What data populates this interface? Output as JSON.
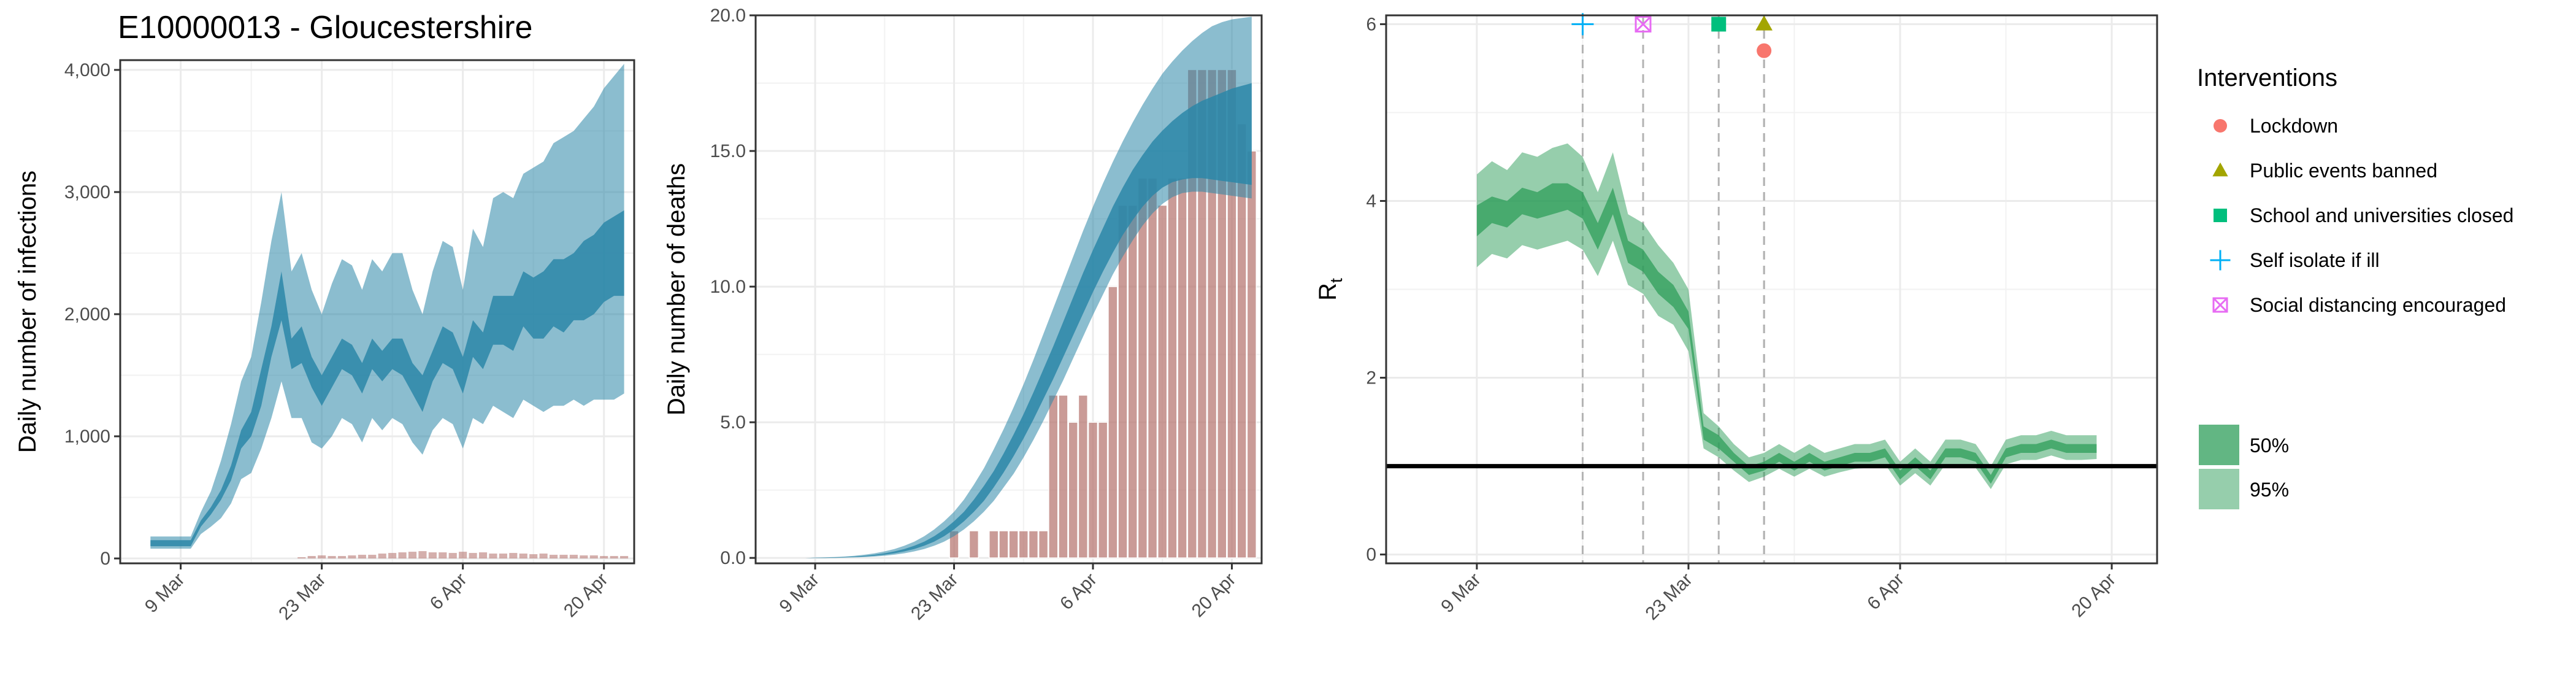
{
  "title": "E10000013 - Gloucestershire",
  "colors": {
    "infection_band": "#2b87a8",
    "death_bar": "#b87a74",
    "rt_band": "#2e9d5a",
    "lockdown": "#f8766d",
    "public_events": "#a3a500",
    "school": "#00bf7d",
    "self_isolate": "#00b0f6",
    "social_distancing": "#e76bf3"
  },
  "chart_data": [
    {
      "type": "area",
      "ylabel": "Daily number of infections",
      "xticks": [
        "9 Mar",
        "23 Mar",
        "6 Apr",
        "20 Apr"
      ],
      "yticks": [
        "0",
        "1,000",
        "2,000",
        "3,000",
        "4,000"
      ],
      "xlim": [
        -3,
        48
      ],
      "ylim": [
        0,
        4080
      ],
      "note_x": "x = day index; day 0 = 6 Mar",
      "x": [
        0,
        1,
        2,
        3,
        4,
        5,
        6,
        7,
        8,
        9,
        10,
        11,
        12,
        13,
        14,
        15,
        16,
        17,
        18,
        19,
        20,
        21,
        22,
        23,
        24,
        25,
        26,
        27,
        28,
        29,
        30,
        31,
        32,
        33,
        34,
        35,
        36,
        37,
        38,
        39,
        40,
        41,
        42,
        43,
        44,
        45,
        46,
        47
      ],
      "series": [
        {
          "name": "50%",
          "lower": [
            100,
            100,
            100,
            100,
            100,
            260,
            360,
            480,
            640,
            900,
            1000,
            1250,
            1650,
            1950,
            1550,
            1600,
            1400,
            1250,
            1400,
            1550,
            1500,
            1350,
            1550,
            1450,
            1550,
            1500,
            1350,
            1200,
            1450,
            1600,
            1550,
            1350,
            1650,
            1550,
            1750,
            1750,
            1700,
            1900,
            1800,
            1800,
            1900,
            1850,
            1950,
            1950,
            2000,
            2100,
            2150,
            2150
          ],
          "upper": [
            150,
            150,
            150,
            150,
            150,
            310,
            420,
            560,
            760,
            1050,
            1200,
            1550,
            1900,
            2350,
            1800,
            1900,
            1650,
            1500,
            1650,
            1800,
            1750,
            1600,
            1800,
            1700,
            1800,
            1800,
            1600,
            1500,
            1700,
            1900,
            1850,
            1650,
            1950,
            1850,
            2150,
            2150,
            2150,
            2350,
            2300,
            2350,
            2450,
            2450,
            2500,
            2600,
            2650,
            2750,
            2800,
            2850
          ]
        },
        {
          "name": "95%",
          "lower": [
            80,
            80,
            80,
            80,
            80,
            200,
            260,
            330,
            450,
            650,
            700,
            900,
            1150,
            1450,
            1150,
            1150,
            950,
            900,
            1000,
            1150,
            1100,
            950,
            1150,
            1050,
            1150,
            1100,
            950,
            850,
            1050,
            1150,
            1100,
            900,
            1150,
            1100,
            1250,
            1200,
            1150,
            1300,
            1250,
            1200,
            1250,
            1250,
            1300,
            1250,
            1300,
            1300,
            1300,
            1350
          ],
          "upper": [
            180,
            180,
            180,
            180,
            180,
            380,
            550,
            800,
            1100,
            1450,
            1650,
            2100,
            2600,
            3000,
            2350,
            2500,
            2200,
            2000,
            2250,
            2450,
            2400,
            2200,
            2450,
            2350,
            2500,
            2500,
            2200,
            2000,
            2350,
            2600,
            2550,
            2200,
            2700,
            2550,
            2950,
            3000,
            2950,
            3150,
            3200,
            3250,
            3400,
            3450,
            3500,
            3600,
            3700,
            3850,
            3950,
            4050
          ]
        }
      ],
      "bars": [
        0,
        0,
        0,
        0,
        0,
        0,
        0,
        0,
        0,
        0,
        0,
        0,
        0,
        0,
        0,
        10,
        20,
        25,
        20,
        20,
        25,
        30,
        30,
        40,
        45,
        50,
        55,
        60,
        50,
        50,
        45,
        55,
        45,
        50,
        40,
        40,
        45,
        40,
        35,
        40,
        30,
        30,
        30,
        25,
        25,
        20,
        20,
        20
      ]
    },
    {
      "type": "bar",
      "ylabel": "Daily number of deaths",
      "xticks": [
        "9 Mar",
        "23 Mar",
        "6 Apr",
        "20 Apr"
      ],
      "yticks": [
        "0.0",
        "5.0",
        "10.0",
        "15.0",
        "20.0"
      ],
      "xlim": [
        -3,
        48
      ],
      "ylim": [
        0,
        20
      ],
      "x": [
        0,
        1,
        2,
        3,
        4,
        5,
        6,
        7,
        8,
        9,
        10,
        11,
        12,
        13,
        14,
        15,
        16,
        17,
        18,
        19,
        20,
        21,
        22,
        23,
        24,
        25,
        26,
        27,
        28,
        29,
        30,
        31,
        32,
        33,
        34,
        35,
        36,
        37,
        38,
        39,
        40,
        41,
        42,
        43,
        44,
        45,
        46,
        47
      ],
      "values": [
        0,
        0,
        0,
        0,
        0,
        0,
        0,
        0,
        0,
        0,
        0,
        0,
        0,
        0,
        0,
        0,
        0,
        1,
        0,
        1,
        0,
        1,
        1,
        1,
        1,
        1,
        1,
        6,
        6,
        5,
        6,
        5,
        5,
        10,
        13,
        13,
        14,
        14,
        13,
        14,
        14,
        18,
        18,
        18,
        18,
        18,
        16,
        15
      ],
      "series": [
        {
          "name": "50%",
          "lower": [
            0,
            0,
            0,
            0,
            0,
            0.01,
            0.02,
            0.03,
            0.05,
            0.08,
            0.12,
            0.17,
            0.24,
            0.33,
            0.45,
            0.6,
            0.8,
            1.05,
            1.35,
            1.7,
            2.1,
            2.6,
            3.15,
            3.75,
            4.4,
            5.1,
            5.85,
            6.6,
            7.4,
            8.2,
            9.0,
            9.8,
            10.55,
            11.25,
            11.9,
            12.45,
            12.95,
            13.35,
            13.65,
            13.85,
            13.95,
            14.0,
            14.0,
            13.95,
            13.9,
            13.85,
            13.8,
            13.75
          ],
          "upper": [
            0,
            0,
            0,
            0.01,
            0.01,
            0.02,
            0.03,
            0.05,
            0.08,
            0.12,
            0.17,
            0.24,
            0.33,
            0.45,
            0.6,
            0.8,
            1.05,
            1.35,
            1.7,
            2.15,
            2.65,
            3.2,
            3.85,
            4.55,
            5.3,
            6.1,
            6.95,
            7.8,
            8.7,
            9.6,
            10.5,
            11.35,
            12.15,
            12.95,
            13.65,
            14.3,
            14.85,
            15.35,
            15.75,
            16.1,
            16.4,
            16.65,
            16.85,
            17.0,
            17.15,
            17.3,
            17.4,
            17.5
          ]
        },
        {
          "name": "95%",
          "lower": [
            0,
            0,
            0,
            0,
            0,
            0,
            0.01,
            0.02,
            0.03,
            0.05,
            0.08,
            0.12,
            0.17,
            0.24,
            0.33,
            0.45,
            0.6,
            0.8,
            1.05,
            1.35,
            1.7,
            2.1,
            2.6,
            3.1,
            3.7,
            4.35,
            5.05,
            5.8,
            6.55,
            7.35,
            8.15,
            8.95,
            9.7,
            10.45,
            11.1,
            11.7,
            12.25,
            12.7,
            13.05,
            13.3,
            13.45,
            13.5,
            13.5,
            13.45,
            13.4,
            13.35,
            13.3,
            13.25
          ],
          "upper": [
            0,
            0,
            0,
            0.01,
            0.02,
            0.03,
            0.05,
            0.08,
            0.12,
            0.17,
            0.24,
            0.33,
            0.45,
            0.6,
            0.8,
            1.05,
            1.35,
            1.7,
            2.15,
            2.7,
            3.3,
            4.0,
            4.75,
            5.55,
            6.4,
            7.3,
            8.25,
            9.2,
            10.15,
            11.1,
            12.05,
            12.95,
            13.8,
            14.6,
            15.35,
            16.05,
            16.7,
            17.3,
            17.85,
            18.3,
            18.7,
            19.05,
            19.35,
            19.6,
            19.75,
            19.85,
            19.9,
            19.95
          ]
        }
      ]
    },
    {
      "type": "area",
      "ylabel": "Rt",
      "xticks": [
        "9 Mar",
        "23 Mar",
        "6 Apr",
        "20 Apr"
      ],
      "yticks": [
        "0",
        "2",
        "4",
        "6"
      ],
      "xlim": [
        -3,
        48
      ],
      "ylim": [
        0,
        6
      ],
      "x": [
        0,
        1,
        2,
        3,
        4,
        5,
        6,
        7,
        8,
        9,
        10,
        11,
        12,
        13,
        14,
        15,
        16,
        17,
        18,
        19,
        20,
        21,
        22,
        23,
        24,
        25,
        26,
        27,
        28,
        29,
        30,
        31,
        32,
        33,
        34,
        35,
        36,
        37,
        38,
        39,
        40,
        41,
        42,
        43,
        44,
        45,
        46,
        47
      ],
      "series": [
        {
          "name": "50%",
          "lower": [
            3.6,
            3.75,
            3.7,
            3.85,
            3.8,
            3.85,
            3.9,
            3.8,
            3.45,
            3.85,
            3.3,
            3.2,
            2.95,
            2.8,
            2.55,
            1.3,
            1.2,
            1.05,
            0.9,
            0.95,
            1.05,
            0.95,
            1.05,
            0.95,
            1.0,
            1.05,
            1.05,
            1.1,
            0.85,
            1.0,
            0.85,
            1.1,
            1.1,
            1.05,
            0.8,
            1.1,
            1.15,
            1.15,
            1.2,
            1.15,
            1.15,
            1.15
          ],
          "upper": [
            3.95,
            4.05,
            4.0,
            4.15,
            4.1,
            4.2,
            4.2,
            4.1,
            3.75,
            4.15,
            3.55,
            3.45,
            3.2,
            3.05,
            2.75,
            1.45,
            1.35,
            1.15,
            1.0,
            1.05,
            1.15,
            1.05,
            1.15,
            1.05,
            1.1,
            1.15,
            1.15,
            1.2,
            0.95,
            1.1,
            0.95,
            1.2,
            1.2,
            1.15,
            0.9,
            1.2,
            1.25,
            1.25,
            1.3,
            1.25,
            1.25,
            1.25
          ]
        },
        {
          "name": "95%",
          "lower": [
            3.25,
            3.4,
            3.35,
            3.5,
            3.45,
            3.5,
            3.55,
            3.45,
            3.15,
            3.55,
            3.05,
            2.95,
            2.7,
            2.6,
            2.3,
            1.2,
            1.1,
            0.95,
            0.82,
            0.88,
            0.97,
            0.88,
            0.97,
            0.88,
            0.93,
            0.97,
            0.98,
            1.02,
            0.78,
            0.92,
            0.78,
            1.02,
            1.02,
            0.98,
            0.74,
            1.02,
            1.07,
            1.07,
            1.12,
            1.07,
            1.07,
            1.08
          ],
          "upper": [
            4.3,
            4.45,
            4.35,
            4.55,
            4.5,
            4.6,
            4.65,
            4.5,
            4.1,
            4.55,
            3.85,
            3.75,
            3.5,
            3.3,
            3.0,
            1.6,
            1.45,
            1.25,
            1.1,
            1.15,
            1.25,
            1.15,
            1.25,
            1.15,
            1.2,
            1.25,
            1.25,
            1.3,
            1.05,
            1.2,
            1.05,
            1.3,
            1.3,
            1.25,
            1.0,
            1.3,
            1.35,
            1.35,
            1.4,
            1.35,
            1.35,
            1.35
          ]
        }
      ],
      "rt_x_start": 3,
      "hline": 1,
      "interventions": [
        {
          "name": "Self isolate if ill",
          "x": 10,
          "marker": "plus"
        },
        {
          "name": "Social distancing encouraged",
          "x": 14,
          "marker": "boxcross"
        },
        {
          "name": "School and universities closed",
          "x": 19,
          "marker": "square"
        },
        {
          "name": "Public events banned",
          "x": 22,
          "marker": "triangle"
        },
        {
          "name": "Lockdown",
          "x": 22,
          "marker": "circle"
        }
      ]
    }
  ],
  "legend": {
    "interventions_title": "Interventions",
    "interventions": [
      {
        "label": "Lockdown",
        "marker": "circle",
        "color_key": "lockdown"
      },
      {
        "label": "Public events banned",
        "marker": "triangle",
        "color_key": "public_events"
      },
      {
        "label": "School and universities closed",
        "marker": "square",
        "color_key": "school"
      },
      {
        "label": "Self isolate if ill",
        "marker": "plus",
        "color_key": "self_isolate"
      },
      {
        "label": "Social distancing encouraged",
        "marker": "boxcross",
        "color_key": "social_distancing"
      }
    ],
    "bands": [
      {
        "label": "50%"
      },
      {
        "label": "95%"
      }
    ]
  }
}
